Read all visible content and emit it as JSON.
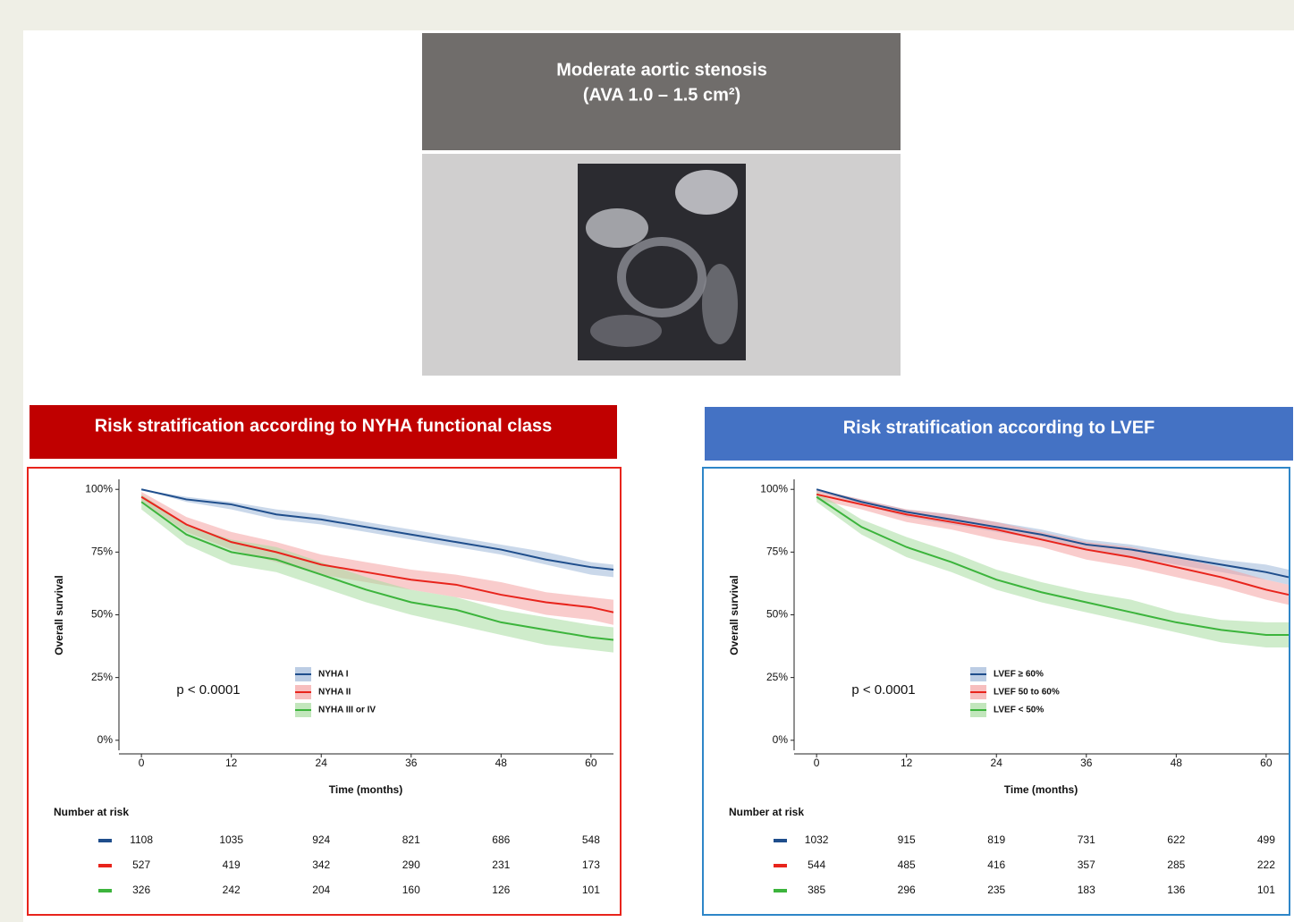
{
  "header": {
    "lines": [
      "Moderate aortic stenosis",
      "(AVA 1.0 – 1.5 cm²)"
    ]
  },
  "chart_data": [
    {
      "type": "line",
      "title": "Risk stratification according to NYHA functional class",
      "frame_color": "#e8241c",
      "title_color": "#c00000",
      "y_label": "Overall survival",
      "x_label": "Time (months)",
      "annotation": "p < 0.0001",
      "x": [
        0,
        6,
        12,
        18,
        24,
        30,
        36,
        42,
        48,
        54,
        60,
        63
      ],
      "xlim": [
        -3,
        63
      ],
      "xticks": [
        0,
        12,
        24,
        36,
        48,
        60
      ],
      "ylim": [
        -4,
        104
      ],
      "yticks": [
        {
          "value": 0,
          "label": "0%"
        },
        {
          "value": 25,
          "label": "25%"
        },
        {
          "value": 50,
          "label": "50%"
        },
        {
          "value": 75,
          "label": "75%"
        },
        {
          "value": 100,
          "label": "100%"
        }
      ],
      "series": [
        {
          "name": "NYHA I",
          "color": "#1f4e8c",
          "band_color": "#9fb8d8",
          "values": [
            100,
            96,
            94,
            90,
            88,
            85,
            82,
            79,
            76,
            72,
            69,
            68
          ],
          "lower": [
            100,
            95,
            92,
            88,
            86,
            83,
            80,
            77,
            74,
            70,
            66,
            65
          ],
          "upper": [
            100,
            97,
            95,
            92,
            90,
            87,
            84,
            81,
            78,
            75,
            71,
            70
          ]
        },
        {
          "name": "NYHA II",
          "color": "#e8241c",
          "band_color": "#f4a3a3",
          "values": [
            97,
            86,
            79,
            75,
            70,
            67,
            64,
            62,
            58,
            55,
            53,
            51
          ],
          "lower": [
            95,
            83,
            76,
            71,
            66,
            63,
            60,
            57,
            54,
            50,
            48,
            46
          ],
          "upper": [
            99,
            89,
            83,
            79,
            74,
            71,
            68,
            66,
            63,
            59,
            57,
            56
          ]
        },
        {
          "name": "NYHA III or IV",
          "color": "#3cb43c",
          "band_color": "#a8dca0",
          "values": [
            95,
            82,
            75,
            72,
            66,
            60,
            55,
            52,
            47,
            44,
            41,
            40
          ],
          "lower": [
            92,
            78,
            70,
            67,
            61,
            55,
            50,
            46,
            42,
            38,
            36,
            35
          ],
          "upper": [
            98,
            86,
            80,
            77,
            71,
            65,
            60,
            57,
            52,
            49,
            46,
            45
          ]
        }
      ],
      "risk_table": {
        "title": "Number at risk",
        "rows": [
          [
            1108,
            1035,
            924,
            821,
            686,
            548
          ],
          [
            527,
            419,
            342,
            290,
            231,
            173
          ],
          [
            326,
            242,
            204,
            160,
            126,
            101
          ]
        ]
      }
    },
    {
      "type": "line",
      "title": "Risk stratification according to LVEF",
      "frame_color": "#2e86c8",
      "title_color": "#4472c4",
      "y_label": "Overall survival",
      "x_label": "Time (months)",
      "annotation": "p < 0.0001",
      "x": [
        0,
        6,
        12,
        18,
        24,
        30,
        36,
        42,
        48,
        54,
        60,
        63
      ],
      "xlim": [
        -3,
        63
      ],
      "xticks": [
        0,
        12,
        24,
        36,
        48,
        60
      ],
      "ylim": [
        -4,
        104
      ],
      "yticks": [
        {
          "value": 0,
          "label": "0%"
        },
        {
          "value": 25,
          "label": "25%"
        },
        {
          "value": 50,
          "label": "50%"
        },
        {
          "value": 75,
          "label": "75%"
        },
        {
          "value": 100,
          "label": "100%"
        }
      ],
      "series": [
        {
          "name": "LVEF ≥ 60%",
          "color": "#1f4e8c",
          "band_color": "#9fb8d8",
          "values": [
            100,
            95,
            91,
            88,
            85,
            82,
            78,
            76,
            73,
            70,
            67,
            65
          ],
          "lower": [
            99,
            94,
            89,
            86,
            83,
            80,
            76,
            73,
            70,
            67,
            64,
            62
          ],
          "upper": [
            100,
            96,
            92,
            90,
            87,
            84,
            80,
            78,
            75,
            72,
            70,
            68
          ]
        },
        {
          "name": "LVEF 50 to 60%",
          "color": "#e8241c",
          "band_color": "#f4a3a3",
          "values": [
            98,
            94,
            90,
            87,
            84,
            80,
            76,
            73,
            69,
            65,
            60,
            58
          ],
          "lower": [
            96,
            92,
            87,
            84,
            80,
            77,
            72,
            69,
            65,
            61,
            56,
            54
          ],
          "upper": [
            100,
            96,
            92,
            90,
            87,
            83,
            79,
            77,
            73,
            69,
            64,
            62
          ]
        },
        {
          "name": "LVEF < 50%",
          "color": "#3cb43c",
          "band_color": "#a8dca0",
          "values": [
            97,
            85,
            77,
            71,
            64,
            59,
            55,
            51,
            47,
            44,
            42,
            42
          ],
          "lower": [
            95,
            82,
            73,
            67,
            60,
            55,
            51,
            47,
            43,
            39,
            37,
            37
          ],
          "upper": [
            99,
            88,
            81,
            75,
            68,
            63,
            59,
            56,
            51,
            48,
            47,
            47
          ]
        }
      ],
      "risk_table": {
        "title": "Number at risk",
        "rows": [
          [
            1032,
            915,
            819,
            731,
            622,
            499
          ],
          [
            544,
            485,
            416,
            357,
            285,
            222
          ],
          [
            385,
            296,
            235,
            183,
            136,
            101
          ]
        ]
      }
    }
  ]
}
